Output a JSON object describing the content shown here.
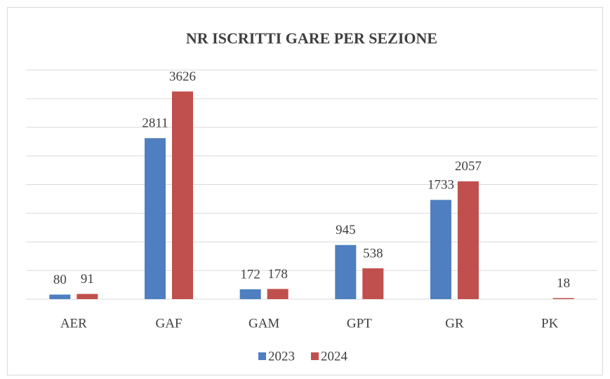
{
  "chart_data": {
    "type": "bar",
    "title": "NR ISCRITTI GARE PER SEZIONE",
    "categories": [
      "AER",
      "GAF",
      "GAM",
      "GPT",
      "GR",
      "PK"
    ],
    "series": [
      {
        "name": "2023",
        "color": "#4f7fc0",
        "values": [
          80,
          2811,
          172,
          945,
          1733,
          null
        ]
      },
      {
        "name": "2024",
        "color": "#c0504d",
        "values": [
          91,
          3626,
          178,
          538,
          2057,
          18
        ]
      }
    ],
    "ylim": [
      0,
      4000
    ],
    "yticks": [
      0,
      500,
      1000,
      1500,
      2000,
      2500,
      3000,
      3500,
      4000
    ],
    "grid": true,
    "legend": "bottom"
  }
}
